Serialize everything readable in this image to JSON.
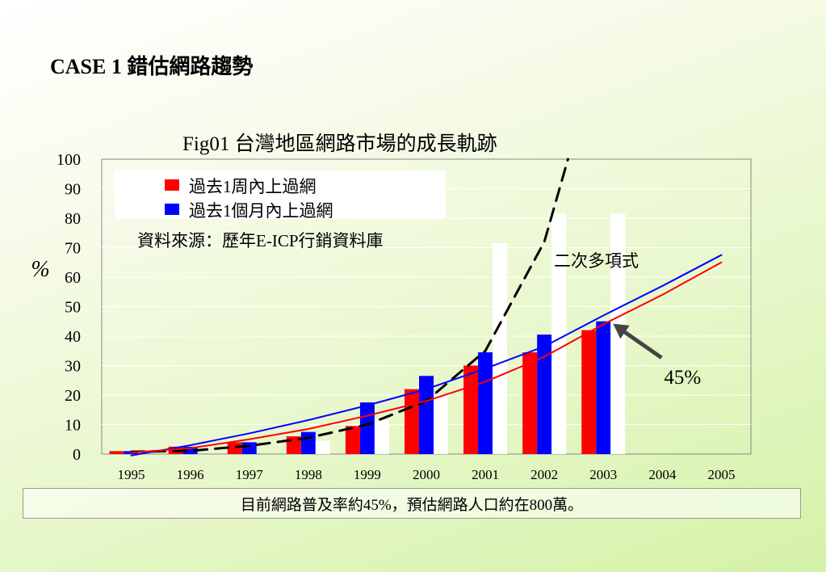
{
  "slide_title": "CASE 1   錯估網路趨勢",
  "caption": "目前網路普及率約45%，預估網路人口約在800萬。",
  "colors": {
    "red": "#ff0000",
    "blue": "#0000ff",
    "white": "#ffffff",
    "black": "#000000"
  },
  "chart_data": {
    "type": "bar",
    "title": "Fig01  台灣地區網路市場的成長軌跡",
    "ylabel": "%",
    "xlabel": "",
    "ylim": [
      0,
      100
    ],
    "yticks": [
      "0",
      "10",
      "20",
      "30",
      "40",
      "50",
      "60",
      "70",
      "80",
      "90",
      "100"
    ],
    "categories": [
      "1995",
      "1996",
      "1997",
      "1998",
      "1999",
      "2000",
      "2001",
      "2002",
      "2003",
      "2004",
      "2005"
    ],
    "series": [
      {
        "name": "過去1周內上過網",
        "color": "#ff0000",
        "values": [
          1,
          2.5,
          4,
          6,
          9.5,
          22,
          30,
          34.5,
          42,
          null,
          null
        ]
      },
      {
        "name": "過去1個月內上過網",
        "color": "#0000ff",
        "values": [
          1,
          2.5,
          4,
          7.5,
          17.5,
          26.5,
          34.5,
          40.5,
          45,
          null,
          null
        ]
      },
      {
        "color": "#ffffff",
        "values": [
          null,
          null,
          null,
          4.5,
          11.5,
          20,
          71.5,
          81.5,
          81.5,
          null,
          null
        ]
      }
    ],
    "trendlines": [
      {
        "name": "二次多項式",
        "style": "dashed",
        "color": "#000000",
        "x": [
          1995,
          1996,
          1997,
          1998,
          1999,
          2000,
          2001,
          2002,
          2002.4
        ],
        "y": [
          0.8,
          1.1,
          2.8,
          5.5,
          10,
          18,
          35,
          72,
          100
        ]
      },
      {
        "style": "solid",
        "color": "#0000ff",
        "x": [
          1995,
          1996,
          1997,
          1998,
          1999,
          2000,
          2001,
          2002,
          2003,
          2004,
          2005
        ],
        "y": [
          -0.5,
          3,
          7,
          11.5,
          16.5,
          22,
          29,
          36.5,
          47,
          57,
          67.5
        ]
      },
      {
        "style": "solid",
        "color": "#ff0000",
        "x": [
          1995,
          1996,
          1997,
          1998,
          1999,
          2000,
          2001,
          2002,
          2003,
          2004,
          2005
        ],
        "y": [
          0.5,
          2,
          5,
          8.5,
          13,
          18,
          24.5,
          33,
          44,
          54,
          65
        ]
      }
    ],
    "source_note": "資料來源：歷年E-ICP行銷資料庫",
    "annotations": [
      {
        "text": "二次多項式"
      },
      {
        "text": "45%",
        "x": 2003,
        "y": 45
      }
    ],
    "legend_placement": "top-left",
    "grid": true
  }
}
